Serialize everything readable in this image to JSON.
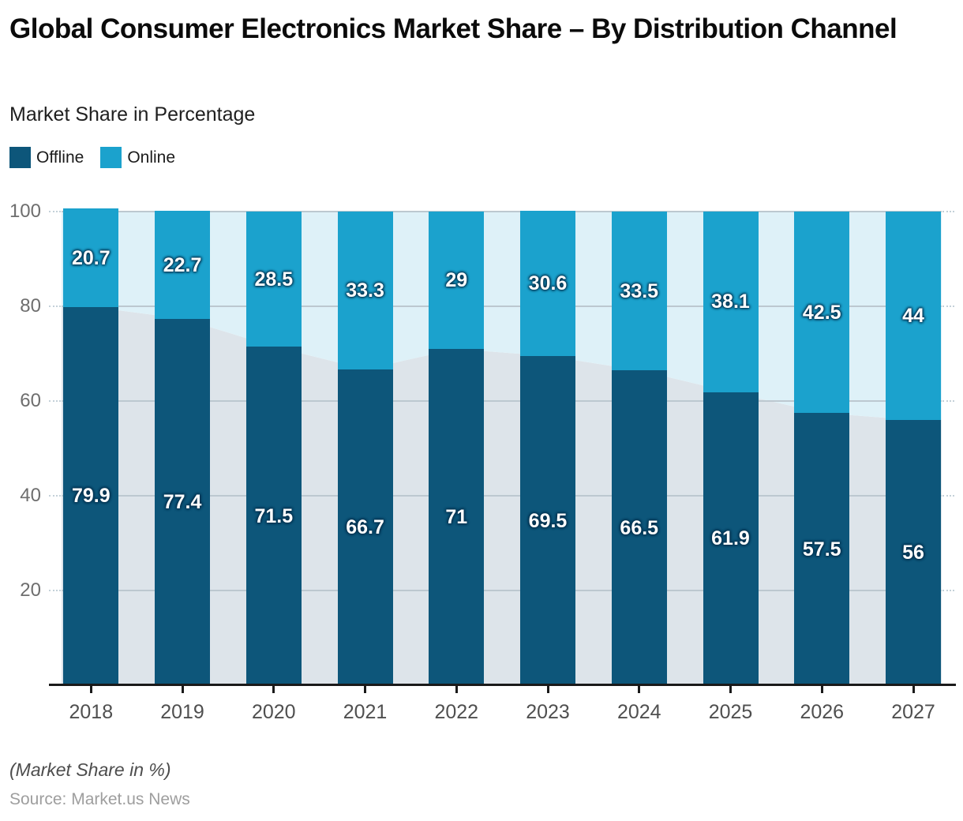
{
  "header": {
    "title": "Global Consumer Electronics Market Share – By Distribution Channel",
    "subtitle": "Market Share in Percentage"
  },
  "legend": {
    "items": [
      {
        "label": "Offline",
        "color": "#0d567a"
      },
      {
        "label": "Online",
        "color": "#1ba2cd"
      }
    ]
  },
  "chart_data": {
    "type": "bar",
    "stacked": true,
    "orientation": "vertical",
    "categories": [
      "2018",
      "2019",
      "2020",
      "2021",
      "2022",
      "2023",
      "2024",
      "2025",
      "2026",
      "2027"
    ],
    "series": [
      {
        "name": "Offline",
        "color": "#0d567a",
        "background_area_color": "#dde4ea",
        "values": [
          79.9,
          77.4,
          71.5,
          66.7,
          71,
          69.5,
          66.5,
          61.9,
          57.5,
          56
        ]
      },
      {
        "name": "Online",
        "color": "#1ba2cd",
        "background_area_color": "#def1f8",
        "values": [
          20.7,
          22.7,
          28.5,
          33.3,
          29,
          30.6,
          33.5,
          38.1,
          42.5,
          44
        ]
      }
    ],
    "title": "Global Consumer Electronics Market Share – By Distribution Channel",
    "xlabel": "",
    "ylabel": "",
    "ylim": [
      0,
      100
    ],
    "yticks": [
      20,
      40,
      60,
      80,
      100
    ],
    "grid": true,
    "gridline_color": "#bcc8d0",
    "legend_position": "top-left",
    "background_trend_area": true,
    "value_labels": "inside-segment-center",
    "value_label_color": "#ffffff"
  },
  "footer": {
    "note": "(Market Share in %)",
    "source": "Source: Market.us News"
  }
}
